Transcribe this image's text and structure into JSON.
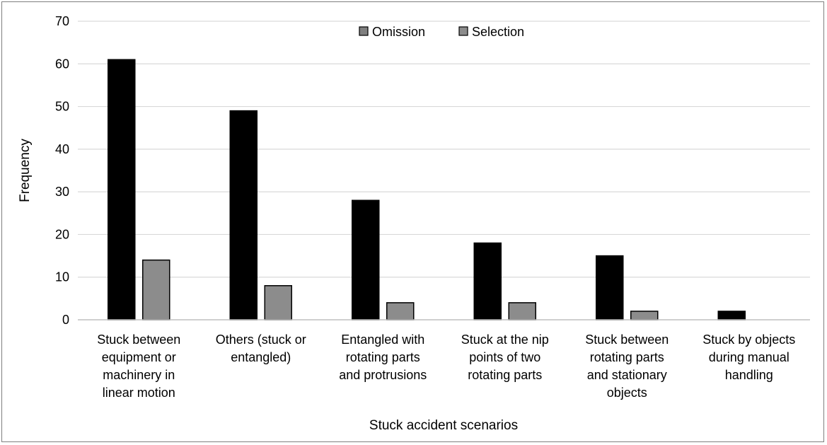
{
  "chart_data": {
    "type": "bar",
    "categories": [
      [
        "Stuck between",
        "equipment or",
        "machinery in",
        "linear motion"
      ],
      [
        "Others (stuck or",
        "entangled)"
      ],
      [
        "Entangled with",
        "rotating parts",
        "and protrusions"
      ],
      [
        "Stuck at the nip",
        "points of two",
        "rotating parts"
      ],
      [
        "Stuck between",
        "rotating parts",
        "and stationary",
        "objects"
      ],
      [
        "Stuck by objects",
        "during manual",
        "handling"
      ]
    ],
    "series": [
      {
        "name": "Omission",
        "values": [
          61,
          49,
          28,
          18,
          15,
          2
        ],
        "color": "#000000"
      },
      {
        "name": "Selection",
        "values": [
          14,
          8,
          4,
          4,
          2,
          0
        ],
        "color": "#8c8c8c"
      }
    ],
    "ylim": [
      0,
      70
    ],
    "yticks": [
      0,
      10,
      20,
      30,
      40,
      50,
      60,
      70
    ],
    "xlabel": "Stuck accident scenarios",
    "ylabel": "Frequency",
    "grid": true,
    "legend_position": "top-center"
  }
}
